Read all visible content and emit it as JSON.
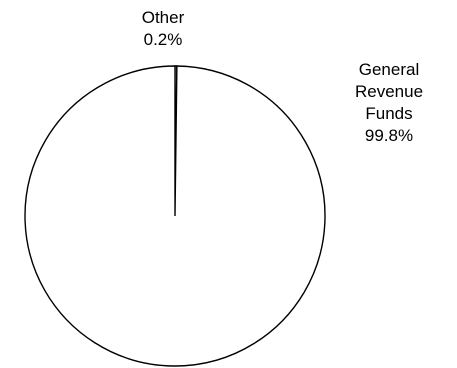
{
  "chart_data": {
    "type": "pie",
    "title": "",
    "slices": [
      {
        "label_lines": [
          "General",
          "Revenue",
          "Funds"
        ],
        "percent_label": "99.8%",
        "value": 99.8
      },
      {
        "label_lines": [
          "Other"
        ],
        "percent_label": "0.2%",
        "value": 0.2
      }
    ],
    "colors": {
      "fill": "#ffffff",
      "stroke": "#000000"
    }
  }
}
